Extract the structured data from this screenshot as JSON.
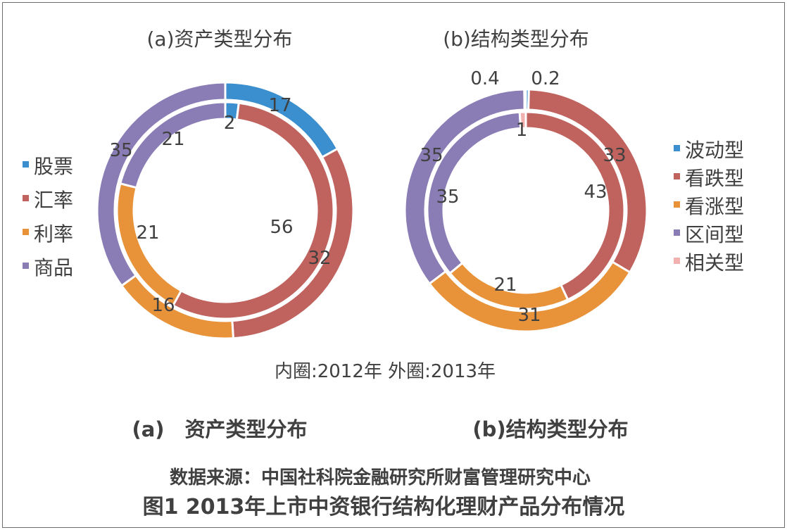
{
  "chart_data": [
    {
      "type": "donut",
      "title": "(a)资产类型分布",
      "categories": [
        "股票",
        "汇率",
        "利率",
        "商品"
      ],
      "colors": [
        "#3b8fcf",
        "#c0635e",
        "#e8923a",
        "#8a7db6"
      ],
      "series": [
        {
          "name": "内圈:2012年",
          "values": [
            2,
            56,
            21,
            21
          ]
        },
        {
          "name": "外圈:2013年",
          "values": [
            17,
            32,
            16,
            35
          ]
        }
      ],
      "legend_position": "left"
    },
    {
      "type": "donut",
      "title": "(b)结构类型分布",
      "categories": [
        "波动型",
        "看跌型",
        "看涨型",
        "区间型",
        "相关型"
      ],
      "colors": [
        "#3b8fcf",
        "#c0635e",
        "#e8923a",
        "#8a7db6",
        "#f2b1ae"
      ],
      "series": [
        {
          "name": "内圈:2012年",
          "values": [
            0,
            43,
            21,
            35,
            1
          ]
        },
        {
          "name": "外圈:2013年",
          "values": [
            0.4,
            33,
            31,
            35,
            0.2
          ]
        }
      ],
      "legend_position": "right"
    }
  ],
  "note": "内圈:2012年 外圈:2013年",
  "captions": {
    "a": "(a)　资产类型分布",
    "b": "(b)结构类型分布"
  },
  "source": "数据来源：中国社科院金融研究所财富管理研究中心",
  "figure_title": "图1 2013年上市中资银行结构化理财产品分布情况"
}
